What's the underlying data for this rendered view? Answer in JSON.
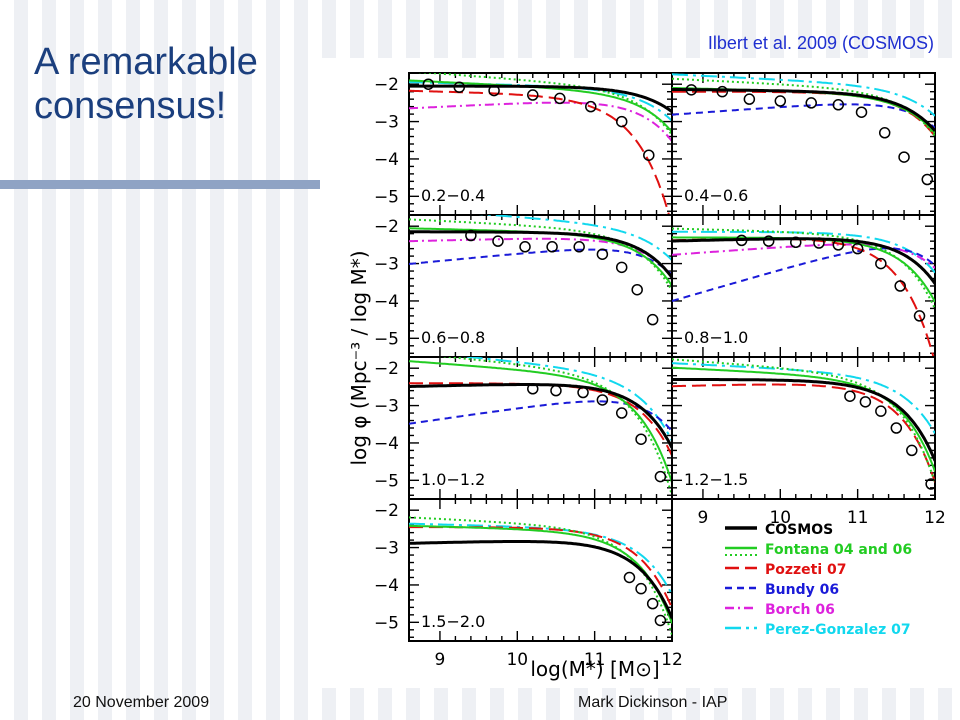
{
  "slide": {
    "title_line1": "A remarkable",
    "title_line2": "consensus!",
    "citation": "Ilbert et al. 2009 (COSMOS)",
    "footer_date": "20 November 2009",
    "footer_author": "Mark Dickinson - IAP"
  },
  "chart_data": {
    "type": "line",
    "ylabel": "log φ  (Mpc⁻³ / log M*)",
    "xlabel": "log(M*)  [M⊙]",
    "xlim": [
      8.6,
      12.0
    ],
    "ylim": [
      -5.5,
      -1.7
    ],
    "x_ticks": [
      "9",
      "10",
      "11",
      "12"
    ],
    "y_ticks": [
      "−2",
      "−3",
      "−4",
      "−5"
    ],
    "legend": [
      {
        "name": "COSMOS",
        "color": "#000000",
        "style": "solid",
        "width": 3
      },
      {
        "name": "Fontana 04 and 06",
        "color": "#22cc22",
        "style": "solid+dotted",
        "width": 2
      },
      {
        "name": "Pozzeti 07",
        "color": "#e01010",
        "style": "longdash",
        "width": 2
      },
      {
        "name": "Bundy 06",
        "color": "#1a1ad8",
        "style": "dash",
        "width": 2
      },
      {
        "name": "Borch 06",
        "color": "#dd22dd",
        "style": "dashdot",
        "width": 2
      },
      {
        "name": "Perez-Gonzalez 07",
        "color": "#11d8ee",
        "style": "longdashdot",
        "width": 2
      }
    ],
    "panels": [
      {
        "label": "0.2−0.4",
        "col": 0,
        "row": 0,
        "series": {
          "COSMOS": [
            11.8,
            -2.05,
            -1.0
          ],
          "Fontana": [
            11.62,
            -2.2,
            -1.1
          ],
          "Pozzeti": [
            11.1,
            -2.3,
            -1.05
          ],
          "Borch": [
            11.55,
            -2.35,
            -0.9
          ],
          "Perez": [
            11.7,
            -2.1,
            -1.05
          ]
        },
        "obs": [
          [
            8.85,
            -2.0
          ],
          [
            9.25,
            -2.08
          ],
          [
            9.7,
            -2.17
          ],
          [
            10.2,
            -2.29
          ],
          [
            10.55,
            -2.38
          ],
          [
            10.95,
            -2.6
          ],
          [
            11.35,
            -3.0
          ],
          [
            11.7,
            -3.9
          ]
        ]
      },
      {
        "label": "0.4−0.6",
        "col": 1,
        "row": 0,
        "series": {
          "COSMOS": [
            11.62,
            -2.2,
            -1.02
          ],
          "Fontana": [
            11.62,
            -2.25,
            -1.05
          ],
          "Pozzeti": [
            11.56,
            -2.2,
            -1.0
          ],
          "Bundy": [
            11.7,
            -2.35,
            -0.85
          ],
          "Perez": [
            11.75,
            -2.05,
            -1.1
          ]
        },
        "obs": [
          [
            8.85,
            -2.15
          ],
          [
            9.25,
            -2.2
          ],
          [
            9.6,
            -2.4
          ],
          [
            10.0,
            -2.45
          ],
          [
            10.4,
            -2.5
          ],
          [
            10.75,
            -2.55
          ],
          [
            11.05,
            -2.75
          ],
          [
            11.35,
            -3.3
          ],
          [
            11.6,
            -3.95
          ],
          [
            11.9,
            -4.55
          ]
        ]
      },
      {
        "label": "0.6−0.8",
        "col": 0,
        "row": 1,
        "series": {
          "COSMOS": [
            11.55,
            -2.15,
            -1.0
          ],
          "Fontana": [
            11.5,
            -2.2,
            -1.05
          ],
          "Pozzeti": [
            11.55,
            -2.15,
            -1.0
          ],
          "Bundy": [
            11.65,
            -2.4,
            -0.8
          ],
          "Borch": [
            11.6,
            -2.25,
            -0.95
          ],
          "Perez": [
            11.7,
            -2.0,
            -1.15
          ]
        },
        "obs": [
          [
            9.4,
            -2.25
          ],
          [
            9.75,
            -2.4
          ],
          [
            10.1,
            -2.55
          ],
          [
            10.45,
            -2.55
          ],
          [
            10.8,
            -2.55
          ],
          [
            11.1,
            -2.75
          ],
          [
            11.35,
            -3.1
          ],
          [
            11.55,
            -3.7
          ],
          [
            11.75,
            -4.5
          ]
        ]
      },
      {
        "label": "0.8−1.0",
        "col": 1,
        "row": 1,
        "series": {
          "COSMOS": [
            11.52,
            -2.25,
            -0.95
          ],
          "Fontana": [
            11.4,
            -2.3,
            -1.0
          ],
          "Pozzeti": [
            11.1,
            -2.25,
            -0.95
          ],
          "Bundy": [
            11.6,
            -2.2,
            -0.4
          ],
          "Borch": [
            11.7,
            -2.3,
            -0.85
          ],
          "Perez": [
            11.6,
            -2.15,
            -1.0
          ]
        },
        "obs": [
          [
            9.5,
            -2.38
          ],
          [
            9.85,
            -2.4
          ],
          [
            10.2,
            -2.43
          ],
          [
            10.5,
            -2.45
          ],
          [
            10.75,
            -2.5
          ],
          [
            11.0,
            -2.6
          ],
          [
            11.3,
            -3.0
          ],
          [
            11.55,
            -3.6
          ],
          [
            11.8,
            -4.4
          ]
        ]
      },
      {
        "label": "1.0−1.2",
        "col": 0,
        "row": 2,
        "series": {
          "COSMOS": [
            11.38,
            -2.35,
            -0.95
          ],
          "Fontana": [
            11.2,
            -2.2,
            -1.15
          ],
          "Pozzeti": [
            11.35,
            -2.4,
            -1.0
          ],
          "Bundy": [
            11.55,
            -2.6,
            -0.7
          ],
          "Perez": [
            11.4,
            -2.1,
            -1.2
          ]
        },
        "obs": [
          [
            10.2,
            -2.55
          ],
          [
            10.5,
            -2.6
          ],
          [
            10.85,
            -2.65
          ],
          [
            11.1,
            -2.85
          ],
          [
            11.35,
            -3.2
          ],
          [
            11.6,
            -3.9
          ],
          [
            11.85,
            -4.9
          ]
        ]
      },
      {
        "label": "1.2−1.5",
        "col": 1,
        "row": 2,
        "series": {
          "COSMOS": [
            11.3,
            -2.3,
            -1.0
          ],
          "Fontana": [
            11.25,
            -2.25,
            -1.1
          ],
          "Pozzeti": [
            11.2,
            -2.35,
            -0.95
          ],
          "Perez": [
            11.45,
            -2.15,
            -1.1
          ]
        },
        "obs": [
          [
            10.9,
            -2.75
          ],
          [
            11.1,
            -2.9
          ],
          [
            11.3,
            -3.15
          ],
          [
            11.5,
            -3.6
          ],
          [
            11.7,
            -4.2
          ],
          [
            11.95,
            -5.1
          ]
        ]
      },
      {
        "label": "1.5−2.0",
        "col": 0,
        "row": 3,
        "series": {
          "COSMOS": [
            11.3,
            -2.75,
            -0.95
          ],
          "Fontana": [
            11.25,
            -2.55,
            -1.05
          ],
          "Pozzeti": [
            11.3,
            -2.45,
            -1.0
          ],
          "Perez": [
            11.4,
            -2.5,
            -1.05
          ]
        },
        "obs": [
          [
            11.45,
            -3.8
          ],
          [
            11.6,
            -4.1
          ],
          [
            11.75,
            -4.5
          ],
          [
            11.85,
            -4.95
          ]
        ]
      }
    ]
  }
}
